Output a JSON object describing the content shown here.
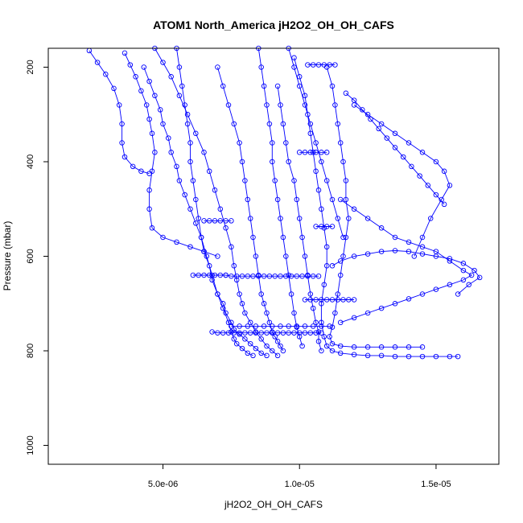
{
  "chart_data": {
    "type": "scatter",
    "title": "ATOM1 North_America jH2O2_OH_OH_CAFS",
    "xlabel": "jH2O2_OH_OH_CAFS",
    "ylabel": "Pressure (mbar)",
    "xlim": [
      8e-07,
      1.73e-05
    ],
    "ylim": [
      1040,
      160
    ],
    "y_reversed": true,
    "x_ticks": [
      {
        "value": 5e-06,
        "label": "5.0e-06"
      },
      {
        "value": 1e-05,
        "label": "1.0e-05"
      },
      {
        "value": 1.5e-05,
        "label": "1.5e-05"
      }
    ],
    "y_ticks": [
      {
        "value": 200,
        "label": "200"
      },
      {
        "value": 400,
        "label": "400"
      },
      {
        "value": 600,
        "label": "600"
      },
      {
        "value": 800,
        "label": "800"
      },
      {
        "value": 1000,
        "label": "1000"
      }
    ],
    "marker": "open-circle",
    "color": "#0000ff",
    "grid": false,
    "series": [
      {
        "x": [
          2.3e-06,
          2.6e-06,
          2.9e-06,
          3.2e-06,
          3.4e-06,
          3.5e-06,
          3.5e-06,
          3.6e-06,
          3.9e-06,
          4.2e-06,
          4.5e-06
        ],
        "y": [
          165,
          190,
          215,
          245,
          280,
          320,
          360,
          390,
          410,
          420,
          425
        ]
      },
      {
        "x": [
          3.6e-06,
          3.8e-06,
          4e-06,
          4.2e-06,
          4.4e-06,
          4.5e-06,
          4.6e-06,
          4.7e-06,
          4.6e-06,
          4.5e-06,
          4.5e-06,
          4.6e-06,
          5e-06,
          5.5e-06,
          6e-06,
          6.5e-06,
          7e-06
        ],
        "y": [
          170,
          195,
          220,
          250,
          280,
          310,
          340,
          380,
          420,
          460,
          500,
          540,
          560,
          570,
          580,
          590,
          600
        ]
      },
      {
        "x": [
          4.3e-06,
          4.5e-06,
          4.7e-06,
          4.9e-06,
          5e-06,
          5.2e-06,
          5.3e-06,
          5.5e-06,
          5.6e-06,
          5.8e-06,
          6e-06,
          6.2e-06,
          6.4e-06,
          6.5e-06,
          6.7e-06,
          6.8e-06,
          7e-06,
          7.2e-06,
          7.3e-06,
          7.5e-06,
          7.6e-06,
          7.8e-06,
          8e-06,
          8.2e-06,
          8.4e-06,
          8.6e-06,
          8.8e-06
        ],
        "y": [
          200,
          230,
          260,
          290,
          320,
          350,
          380,
          410,
          440,
          470,
          500,
          530,
          560,
          590,
          620,
          650,
          680,
          700,
          720,
          740,
          755,
          765,
          775,
          785,
          795,
          805,
          810
        ]
      },
      {
        "x": [
          5.5e-06,
          5.6e-06,
          5.7e-06,
          5.8e-06,
          5.9e-06,
          6e-06,
          6e-06,
          6.1e-06,
          6.2e-06,
          6.3e-06,
          6.4e-06,
          6.6e-06,
          6.8e-06,
          7e-06,
          7.2e-06,
          7.4e-06,
          7.5e-06,
          7.6e-06,
          7.7e-06,
          7.9e-06,
          8.1e-06,
          8.3e-06
        ],
        "y": [
          160,
          200,
          240,
          280,
          320,
          360,
          400,
          440,
          480,
          520,
          560,
          600,
          640,
          680,
          710,
          740,
          760,
          775,
          785,
          795,
          805,
          810
        ]
      },
      {
        "x": [
          4.7e-06,
          5e-06,
          5.3e-06,
          5.6e-06,
          5.9e-06,
          6.2e-06,
          6.5e-06,
          6.7e-06,
          6.9e-06,
          7.1e-06,
          7.3e-06,
          7.5e-06,
          7.6e-06,
          7.7e-06,
          7.8e-06,
          7.9e-06,
          8e-06,
          8.2e-06,
          8.4e-06,
          8.6e-06,
          8.8e-06,
          9e-06,
          9.2e-06
        ],
        "y": [
          160,
          190,
          220,
          260,
          300,
          340,
          380,
          420,
          460,
          500,
          540,
          580,
          620,
          650,
          680,
          700,
          720,
          740,
          760,
          775,
          790,
          800,
          810
        ]
      },
      {
        "x": [
          7e-06,
          7.2e-06,
          7.4e-06,
          7.6e-06,
          7.8e-06,
          7.9e-06,
          8e-06,
          8.1e-06,
          8.2e-06,
          8.3e-06,
          8.4e-06,
          8.5e-06,
          8.6e-06,
          8.7e-06,
          8.8e-06,
          8.9e-06,
          9e-06,
          9.1e-06,
          9.2e-06,
          9.3e-06,
          9.4e-06
        ],
        "y": [
          200,
          240,
          280,
          320,
          360,
          400,
          440,
          480,
          520,
          560,
          600,
          640,
          680,
          700,
          720,
          740,
          760,
          770,
          780,
          790,
          800
        ]
      },
      {
        "x": [
          8.5e-06,
          8.6e-06,
          8.7e-06,
          8.8e-06,
          8.9e-06,
          9e-06,
          9e-06,
          9.1e-06,
          9.2e-06,
          9.3e-06,
          9.4e-06,
          9.5e-06,
          9.6e-06,
          9.7e-06,
          9.8e-06,
          9.9e-06,
          1e-05,
          1.01e-05
        ],
        "y": [
          160,
          200,
          240,
          280,
          320,
          360,
          400,
          440,
          480,
          520,
          560,
          600,
          640,
          680,
          720,
          750,
          770,
          790
        ]
      },
      {
        "x": [
          9.2e-06,
          9.3e-06,
          9.4e-06,
          9.5e-06,
          9.6e-06,
          9.8e-06,
          9.9e-06,
          1e-05,
          1.01e-05,
          1.02e-05,
          1.03e-05,
          1.04e-05,
          1.05e-05,
          1.06e-05,
          1.07e-05,
          1.07e-05,
          1.08e-05
        ],
        "y": [
          240,
          280,
          320,
          360,
          400,
          440,
          480,
          520,
          560,
          600,
          640,
          680,
          710,
          740,
          760,
          780,
          800
        ]
      },
      {
        "x": [
          9.8e-06,
          1e-05,
          1.02e-05,
          1.03e-05,
          1.04e-05,
          1.05e-05,
          1.06e-05,
          1.07e-05,
          1.08e-05,
          1.09e-05,
          1.1e-05,
          1.1e-05,
          1.09e-05,
          1.08e-05,
          1.08e-05,
          1.09e-05,
          1.1e-05,
          1.12e-05,
          1.15e-05,
          1.2e-05,
          1.25e-05,
          1.3e-05,
          1.35e-05,
          1.4e-05,
          1.45e-05,
          1.5e-05,
          1.55e-05,
          1.58e-05
        ],
        "y": [
          180,
          220,
          260,
          300,
          340,
          380,
          420,
          460,
          500,
          540,
          580,
          620,
          660,
          700,
          740,
          770,
          790,
          800,
          805,
          808,
          810,
          810,
          812,
          812,
          812,
          812,
          812,
          812
        ]
      },
      {
        "x": [
          1.1e-05,
          1.12e-05,
          1.13e-05,
          1.14e-05,
          1.15e-05,
          1.16e-05,
          1.17e-05,
          1.17e-05,
          1.18e-05,
          1.17e-05,
          1.16e-05,
          1.15e-05,
          1.14e-05,
          1.13e-05,
          1.12e-05,
          1.11e-05,
          1.12e-05,
          1.15e-05,
          1.2e-05,
          1.25e-05,
          1.3e-05,
          1.35e-05,
          1.4e-05,
          1.45e-05
        ],
        "y": [
          200,
          240,
          280,
          320,
          360,
          400,
          440,
          480,
          520,
          560,
          600,
          640,
          680,
          720,
          750,
          770,
          785,
          790,
          792,
          792,
          792,
          792,
          792,
          792
        ]
      },
      {
        "x": [
          1.15e-05,
          1.2e-05,
          1.25e-05,
          1.3e-05,
          1.35e-05,
          1.4e-05,
          1.45e-05,
          1.5e-05,
          1.55e-05,
          1.6e-05,
          1.63e-05,
          1.6e-05,
          1.55e-05,
          1.5e-05,
          1.45e-05,
          1.4e-05,
          1.35e-05,
          1.3e-05,
          1.25e-05,
          1.2e-05,
          1.15e-05
        ],
        "y": [
          480,
          500,
          520,
          540,
          560,
          570,
          580,
          590,
          610,
          630,
          640,
          650,
          660,
          670,
          680,
          690,
          700,
          710,
          720,
          730,
          740
        ]
      },
      {
        "x": [
          1.2e-05,
          1.25e-05,
          1.3e-05,
          1.35e-05,
          1.4e-05,
          1.45e-05,
          1.5e-05,
          1.53e-05,
          1.55e-05,
          1.52e-05,
          1.48e-05,
          1.45e-05,
          1.42e-05
        ],
        "y": [
          280,
          300,
          320,
          340,
          360,
          380,
          400,
          420,
          450,
          480,
          520,
          560,
          600
        ]
      },
      {
        "x": [
          9.6e-06,
          9.8e-06,
          1e-05,
          1.02e-05,
          1.04e-05,
          1.06e-05,
          1.08e-05,
          1.1e-05,
          1.12e-05,
          1.14e-05,
          1.16e-05
        ],
        "y": [
          160,
          200,
          240,
          280,
          320,
          360,
          400,
          440,
          480,
          520,
          560
        ]
      },
      {
        "x": [
          7.3e-06,
          7.5e-06,
          7.7e-06,
          7.9e-06,
          8.1e-06,
          8.3e-06,
          8.5e-06,
          8.7e-06,
          8.9e-06,
          9.1e-06,
          9.3e-06,
          9.5e-06,
          9.7e-06,
          9.9e-06,
          1.01e-05,
          1.03e-05,
          1.05e-05,
          1.07e-05
        ],
        "y": [
          640,
          642,
          642,
          642,
          642,
          642,
          642,
          642,
          642,
          642,
          642,
          642,
          642,
          642,
          642,
          642,
          642,
          642
        ]
      },
      {
        "x": [
          6.8e-06,
          7e-06,
          7.2e-06,
          7.4e-06,
          7.6e-06,
          7.8e-06,
          8e-06,
          8.2e-06,
          8.4e-06,
          8.6e-06,
          8.8e-06,
          9e-06,
          9.2e-06,
          9.4e-06,
          9.6e-06,
          9.8e-06,
          1e-05,
          1.02e-05,
          1.04e-05,
          1.06e-05,
          1.08e-05
        ],
        "y": [
          760,
          762,
          762,
          762,
          762,
          762,
          762,
          762,
          762,
          762,
          762,
          762,
          762,
          762,
          762,
          762,
          762,
          762,
          762,
          762,
          762
        ]
      },
      {
        "x": [
          7.5e-06,
          7.8e-06,
          8.1e-06,
          8.4e-06,
          8.7e-06,
          9e-06,
          9.3e-06,
          9.6e-06,
          9.9e-06,
          1.02e-05,
          1.05e-05,
          1.08e-05,
          1.11e-05
        ],
        "y": [
          748,
          748,
          748,
          748,
          748,
          748,
          748,
          748,
          748,
          748,
          748,
          748,
          748
        ]
      },
      {
        "x": [
          6.5e-06,
          6.7e-06,
          6.9e-06,
          7.1e-06,
          7.3e-06,
          7.5e-06
        ],
        "y": [
          525,
          525,
          525,
          525,
          525,
          525
        ]
      },
      {
        "x": [
          1.03e-05,
          1.05e-05,
          1.07e-05,
          1.09e-05,
          1.11e-05,
          1.13e-05
        ],
        "y": [
          195,
          195,
          195,
          195,
          195,
          195
        ]
      },
      {
        "x": [
          1.06e-05,
          1.08e-05,
          1.1e-05,
          1.12e-05
        ],
        "y": [
          537,
          537,
          537,
          537
        ]
      },
      {
        "x": [
          1e-05,
          1.02e-05,
          1.04e-05,
          1.06e-05,
          1.08e-05,
          1.1e-05
        ],
        "y": [
          380,
          380,
          380,
          380,
          380,
          380
        ]
      },
      {
        "x": [
          1.02e-05,
          1.04e-05,
          1.06e-05,
          1.08e-05,
          1.1e-05,
          1.12e-05,
          1.14e-05,
          1.16e-05,
          1.18e-05,
          1.2e-05
        ],
        "y": [
          692,
          692,
          692,
          692,
          692,
          692,
          692,
          692,
          692,
          692
        ]
      },
      {
        "x": [
          6.1e-06,
          6.3e-06,
          6.5e-06,
          6.7e-06,
          6.9e-06,
          7.1e-06,
          7.3e-06
        ],
        "y": [
          640,
          640,
          640,
          640,
          640,
          640,
          640
        ]
      },
      {
        "x": [
          1.17e-05,
          1.2e-05,
          1.23e-05,
          1.26e-05,
          1.29e-05,
          1.32e-05,
          1.35e-05,
          1.38e-05,
          1.41e-05,
          1.44e-05,
          1.47e-05,
          1.5e-05,
          1.53e-05
        ],
        "y": [
          255,
          270,
          290,
          310,
          330,
          350,
          370,
          390,
          410,
          430,
          450,
          470,
          490
        ]
      },
      {
        "x": [
          1.12e-05,
          1.15e-05,
          1.2e-05,
          1.25e-05,
          1.3e-05,
          1.35e-05,
          1.4e-05,
          1.45e-05,
          1.5e-05,
          1.55e-05,
          1.6e-05,
          1.64e-05,
          1.66e-05,
          1.62e-05,
          1.58e-05
        ],
        "y": [
          620,
          610,
          600,
          595,
          590,
          588,
          590,
          595,
          600,
          605,
          615,
          630,
          645,
          660,
          680
        ]
      }
    ]
  }
}
